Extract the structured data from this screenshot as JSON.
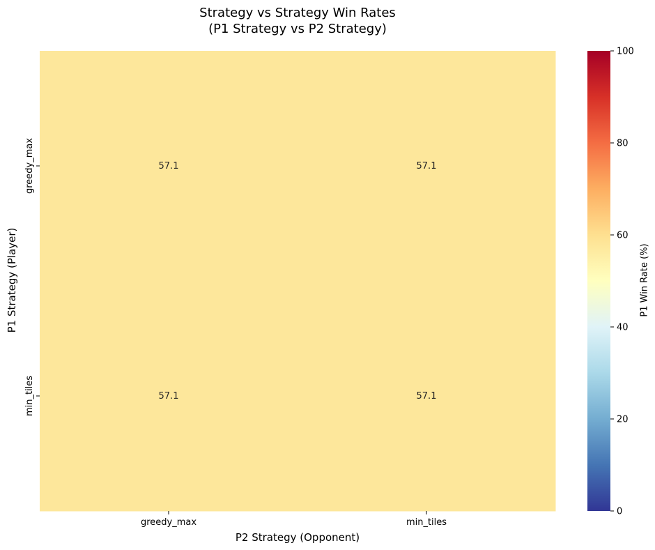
{
  "chart_data": {
    "type": "heatmap",
    "title": "Strategy vs Strategy Win Rates",
    "subtitle": "(P1 Strategy vs P2 Strategy)",
    "xlabel": "P2 Strategy (Opponent)",
    "ylabel": "P1 Strategy (Player)",
    "x_categories": [
      "greedy_max",
      "min_tiles"
    ],
    "y_categories": [
      "greedy_max",
      "min_tiles"
    ],
    "values": [
      [
        57.1,
        57.1
      ],
      [
        57.1,
        57.1
      ]
    ],
    "value_labels": [
      [
        "57.1",
        "57.1"
      ],
      [
        "57.1",
        "57.1"
      ]
    ],
    "colorbar": {
      "label": "P1 Win Rate (%)",
      "range": [
        0,
        100
      ],
      "ticks": [
        0,
        20,
        40,
        60,
        80,
        100
      ],
      "colormap": "RdYlBu_r",
      "cell_color": "#fde79b"
    }
  }
}
